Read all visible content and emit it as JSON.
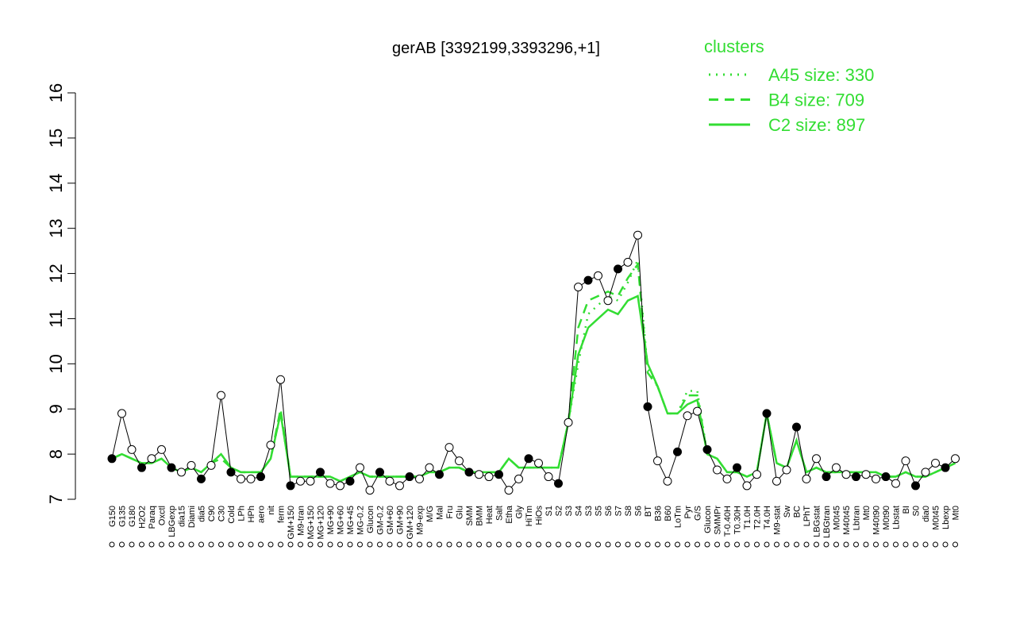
{
  "chart_data": {
    "type": "line",
    "title": "gerAB [3392199,3393296,+1]",
    "legend_title": "clusters",
    "categories": [
      "G150",
      "G135",
      "G180",
      "H2O2",
      "Paraq",
      "Oxctl",
      "LBGexp",
      "dia15",
      "Diami",
      "dia5",
      "C90",
      "C30",
      "Cold",
      "LPh",
      "HPh",
      "aero",
      "nit",
      "ferm",
      "GM+150",
      "M9-tran",
      "MG+150",
      "MG+120",
      "MG+90",
      "MG+60",
      "MG+45",
      "MG-0.2",
      "Glucon",
      "GM-0.2",
      "GM+60",
      "GM+90",
      "GM+120",
      "M9-exp",
      "M/G",
      "Mal",
      "Fru",
      "Glu",
      "SMM",
      "BMM",
      "Heat",
      "Salt",
      "Etha",
      "Gly",
      "HiTm",
      "HiOs",
      "S1",
      "S2",
      "S3",
      "S4",
      "S3",
      "S5",
      "S6",
      "S7",
      "S8",
      "S6",
      "BT",
      "B36",
      "B60",
      "LoTm",
      "Pyr",
      "G/S",
      "Glucon",
      "SMMPr",
      "T-0.40H",
      "T0.30H",
      "T1.0H",
      "T2.0H",
      "T4.0H",
      "M9-stat",
      "Sw",
      "BC",
      "LPhT",
      "LBGstat",
      "LBGtran",
      "M0t45",
      "M40t45",
      "Lbtran",
      "Mt0",
      "M40t90",
      "M0t90",
      "Lbstat",
      "BI",
      "S0",
      "dia0",
      "M0t45",
      "Lbexp",
      "Mt0"
    ],
    "values": [
      7.9,
      8.9,
      8.1,
      7.7,
      7.9,
      8.1,
      7.7,
      7.6,
      7.75,
      7.45,
      7.75,
      9.3,
      7.6,
      7.45,
      7.45,
      7.5,
      8.2,
      9.65,
      7.3,
      7.4,
      7.4,
      7.6,
      7.35,
      7.3,
      7.4,
      7.7,
      7.2,
      7.6,
      7.4,
      7.3,
      7.5,
      7.45,
      7.7,
      7.55,
      8.15,
      7.85,
      7.6,
      7.55,
      7.5,
      7.55,
      7.2,
      7.45,
      7.9,
      7.8,
      7.5,
      7.35,
      8.7,
      11.7,
      11.85,
      11.95,
      11.4,
      12.1,
      12.25,
      12.85,
      9.05,
      7.85,
      7.4,
      8.05,
      8.85,
      8.95,
      8.1,
      7.65,
      7.45,
      7.7,
      7.3,
      7.55,
      8.9,
      7.4,
      7.65,
      8.6,
      7.45,
      7.9,
      7.5,
      7.7,
      7.55,
      7.5,
      7.55,
      7.45,
      7.5,
      7.35,
      7.85,
      7.3,
      7.6,
      7.8,
      7.7,
      7.9
    ],
    "color": "#000000",
    "series": [
      {
        "name": "A45 size: 330",
        "color": "#33dd33",
        "dash": "dotted",
        "values": [
          7.9,
          8.0,
          7.9,
          7.8,
          7.8,
          7.9,
          7.7,
          7.6,
          7.7,
          7.6,
          7.8,
          8.0,
          7.7,
          7.6,
          7.6,
          7.6,
          7.9,
          8.9,
          7.5,
          7.5,
          7.5,
          7.5,
          7.5,
          7.4,
          7.5,
          7.6,
          7.5,
          7.5,
          7.5,
          7.5,
          7.5,
          7.5,
          7.6,
          7.6,
          7.7,
          7.7,
          7.6,
          7.6,
          7.6,
          7.6,
          7.9,
          7.7,
          7.7,
          7.7,
          7.7,
          7.7,
          8.7,
          10.0,
          11.1,
          11.3,
          11.5,
          11.4,
          11.8,
          12.3,
          9.9,
          9.5,
          8.9,
          8.9,
          9.4,
          9.4,
          8.0,
          7.9,
          7.6,
          7.6,
          7.5,
          7.6,
          8.9,
          7.8,
          7.7,
          8.3,
          7.6,
          7.7,
          7.6,
          7.6,
          7.6,
          7.6,
          7.6,
          7.6,
          7.5,
          7.5,
          7.6,
          7.5,
          7.5,
          7.6,
          7.7,
          7.8
        ]
      },
      {
        "name": "B4 size: 709",
        "color": "#33dd33",
        "dash": "dashed",
        "values": [
          7.9,
          8.0,
          7.9,
          7.8,
          7.8,
          7.9,
          7.7,
          7.6,
          7.7,
          7.6,
          7.8,
          7.9,
          7.7,
          7.6,
          7.6,
          7.6,
          7.9,
          9.0,
          7.5,
          7.5,
          7.5,
          7.5,
          7.5,
          7.4,
          7.5,
          7.6,
          7.5,
          7.5,
          7.5,
          7.5,
          7.5,
          7.5,
          7.6,
          7.6,
          7.7,
          7.7,
          7.6,
          7.6,
          7.6,
          7.6,
          7.9,
          7.7,
          7.7,
          7.7,
          7.7,
          7.7,
          8.7,
          10.8,
          11.4,
          11.5,
          11.6,
          11.5,
          11.9,
          12.2,
          9.8,
          9.5,
          8.9,
          8.9,
          9.3,
          9.3,
          8.0,
          7.9,
          7.6,
          7.6,
          7.5,
          7.6,
          8.9,
          7.8,
          7.7,
          8.3,
          7.6,
          7.7,
          7.6,
          7.6,
          7.6,
          7.6,
          7.6,
          7.6,
          7.5,
          7.5,
          7.6,
          7.5,
          7.5,
          7.6,
          7.7,
          7.8
        ]
      },
      {
        "name": "C2 size: 897",
        "color": "#33dd33",
        "dash": "solid",
        "values": [
          7.9,
          8.0,
          7.9,
          7.8,
          7.8,
          7.9,
          7.7,
          7.6,
          7.7,
          7.6,
          7.8,
          8.0,
          7.7,
          7.6,
          7.6,
          7.6,
          7.9,
          8.9,
          7.5,
          7.5,
          7.5,
          7.5,
          7.5,
          7.4,
          7.5,
          7.6,
          7.5,
          7.5,
          7.5,
          7.5,
          7.5,
          7.5,
          7.6,
          7.6,
          7.7,
          7.7,
          7.6,
          7.6,
          7.6,
          7.6,
          7.9,
          7.7,
          7.7,
          7.7,
          7.7,
          7.7,
          8.7,
          10.2,
          10.8,
          11.0,
          11.2,
          11.1,
          11.4,
          11.5,
          10.0,
          9.5,
          8.9,
          8.9,
          9.1,
          9.2,
          8.0,
          7.9,
          7.6,
          7.6,
          7.5,
          7.6,
          8.9,
          7.8,
          7.7,
          8.3,
          7.6,
          7.7,
          7.6,
          7.6,
          7.6,
          7.6,
          7.6,
          7.6,
          7.5,
          7.5,
          7.6,
          7.5,
          7.5,
          7.6,
          7.7,
          7.8
        ]
      }
    ],
    "ylim": [
      7,
      16
    ],
    "yticks": [
      7,
      8,
      9,
      10,
      11,
      12,
      13,
      14,
      15,
      16
    ]
  }
}
